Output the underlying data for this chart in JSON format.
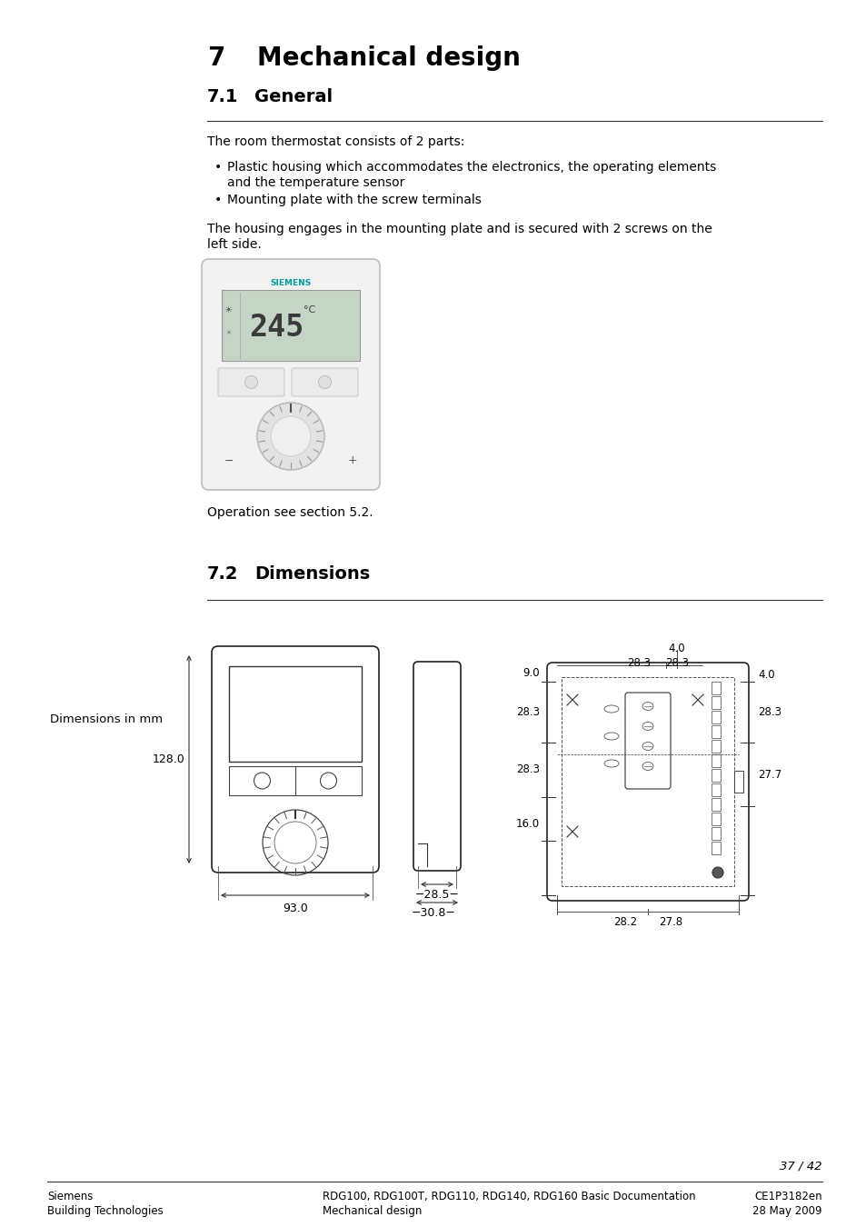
{
  "title_number": "7",
  "title_text": "Mechanical design",
  "section_71": "7.1",
  "section_71_title": "General",
  "section_72": "7.2",
  "section_72_title": "Dimensions",
  "body_text_1": "The room thermostat consists of 2 parts:",
  "bullet_1a": "Plastic housing which accommodates the electronics, the operating elements",
  "bullet_1b": "and the temperature sensor",
  "bullet_2": "Mounting plate with the screw terminals",
  "body_text_2a": "The housing engages in the mounting plate and is secured with 2 screws on the",
  "body_text_2b": "left side.",
  "operation_text": "Operation see section 5.2.",
  "dim_label": "Dimensions in mm",
  "dim_93": "93.0",
  "dim_128": "128.0",
  "dim_285": "28.5",
  "dim_308": "30.8",
  "dim_90": "9.0",
  "dim_283a": "28.3",
  "dim_283b": "28.3",
  "dim_283c": "28.3",
  "dim_283d": "28.3",
  "dim_277": "27.7",
  "dim_282": "28.2",
  "dim_278": "27.8",
  "dim_40a": "4.0",
  "dim_40b": "4.0",
  "dim_160": "16.0",
  "page_number": "37 / 42",
  "footer_left_1": "Siemens",
  "footer_left_2": "Building Technologies",
  "footer_mid_1": "RDG100, RDG100T, RDG110, RDG140, RDG160 Basic Documentation",
  "footer_mid_2": "Mechanical design",
  "footer_right_1": "CE1P3182en",
  "footer_right_2": "28 May 2009",
  "bg_color": "#ffffff",
  "text_color": "#000000",
  "line_color": "#000000",
  "siemens_color": "#009999"
}
